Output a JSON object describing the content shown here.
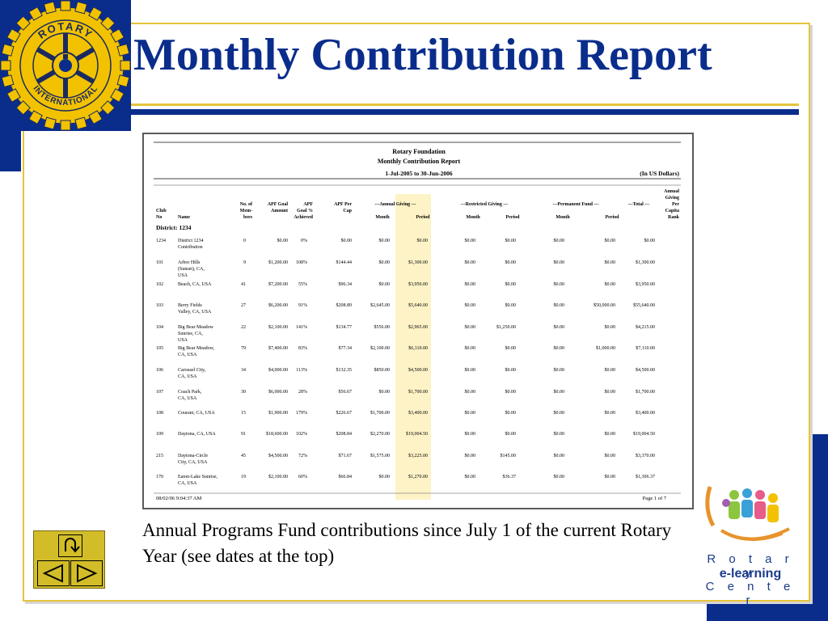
{
  "slide": {
    "title": "Monthly Contribution Report",
    "caption": "Annual Programs Fund contributions since July 1 of the current Rotary Year (see dates at the top)"
  },
  "logo": {
    "top_text": "ROTARY",
    "bottom_text": "INTERNATIONAL"
  },
  "elearning": {
    "line1": "R o t a r y",
    "line2": "e-learning",
    "line3": "C e n t e r"
  },
  "report": {
    "org": "Rotary Foundation",
    "name": "Monthly Contribution Report",
    "period": "1-Jul-2005 to 30-Jun-2006",
    "currency": "(In US Dollars)",
    "district": "District: 1234",
    "footer_left": "08/02/06   9:04:37 AM",
    "footer_right": "Page 1 of 7",
    "headers": {
      "club_no": [
        "Club",
        "No"
      ],
      "name": "Name",
      "members": [
        "No. of",
        "Mem-",
        "bers"
      ],
      "apf_goal": [
        "APF Goal",
        "Amount"
      ],
      "apf_goal_pct": [
        "APF",
        "Goal %",
        "Achieved"
      ],
      "apf_per_cap": [
        "APF Per",
        "Cap"
      ],
      "annual_giving": "---Annual Giving ---",
      "restricted_giving": "---Restricted Giving ---",
      "permanent_fund": "---Permanent Fund ---",
      "total": "---Total ---",
      "month": "Month",
      "period": "Period",
      "rank": [
        "Annual",
        "Giving",
        "Per",
        "Capita",
        "Rank"
      ]
    },
    "rows": [
      {
        "club": "1234",
        "name": [
          "District 1234",
          "Contribution"
        ],
        "members": "0",
        "goal": "$0.00",
        "pct": "0%",
        "percap": "$0.00",
        "ag_m": "$0.00",
        "ag_p": "$0.00",
        "rg_m": "$0.00",
        "rg_p": "$0.00",
        "pf_m": "$0.00",
        "pf_p": "$0.00",
        "total": "$0.00"
      },
      {
        "club": "101",
        "name": [
          "Arbor Hills",
          "(Sunset), CA,",
          "USA"
        ],
        "members": "9",
        "goal": "$1,200.00",
        "pct": "108%",
        "percap": "$144.44",
        "ag_m": "$0.00",
        "ag_p": "$1,300.00",
        "rg_m": "$0.00",
        "rg_p": "$0.00",
        "pf_m": "$0.00",
        "pf_p": "$0.00",
        "total": "$1,300.00"
      },
      {
        "club": "102",
        "name": [
          "Beach, CA, USA"
        ],
        "members": "41",
        "goal": "$7,200.00",
        "pct": "55%",
        "percap": "$96.34",
        "ag_m": "$0.00",
        "ag_p": "$3,950.00",
        "rg_m": "$0.00",
        "rg_p": "$0.00",
        "pf_m": "$0.00",
        "pf_p": "$0.00",
        "total": "$3,950.00"
      },
      {
        "club": "103",
        "name": [
          "Berry Fields",
          "Valley, CA, USA"
        ],
        "members": "27",
        "goal": "$6,200.00",
        "pct": "91%",
        "percap": "$208.89",
        "ag_m": "$2,645.00",
        "ag_p": "$5,640.00",
        "rg_m": "$0.00",
        "rg_p": "$0.00",
        "pf_m": "$0.00",
        "pf_p": "$50,000.00",
        "total": "$55,640.00"
      },
      {
        "club": "104",
        "name": [
          "Big Bear Meadow",
          "Sunrise, CA,",
          "USA"
        ],
        "members": "22",
        "goal": "$2,100.00",
        "pct": "141%",
        "percap": "$134.77",
        "ag_m": "$556.00",
        "ag_p": "$2,965.00",
        "rg_m": "$0.00",
        "rg_p": "$1,250.00",
        "pf_m": "$0.00",
        "pf_p": "$0.00",
        "total": "$4,215.00"
      },
      {
        "club": "105",
        "name": [
          "Big Bear Meadow,",
          "CA, USA"
        ],
        "members": "79",
        "goal": "$7,400.00",
        "pct": "83%",
        "percap": "$77.34",
        "ag_m": "$2,100.00",
        "ag_p": "$6,110.00",
        "rg_m": "$0.00",
        "rg_p": "$0.00",
        "pf_m": "$0.00",
        "pf_p": "$1,000.00",
        "total": "$7,110.00"
      },
      {
        "club": "106",
        "name": [
          "Carousel City,",
          "CA, USA"
        ],
        "members": "34",
        "goal": "$4,000.00",
        "pct": "113%",
        "percap": "$132.35",
        "ag_m": "$850.00",
        "ag_p": "$4,500.00",
        "rg_m": "$0.00",
        "rg_p": "$0.00",
        "pf_m": "$0.00",
        "pf_p": "$0.00",
        "total": "$4,500.00"
      },
      {
        "club": "107",
        "name": [
          "Coach Park,",
          "CA, USA"
        ],
        "members": "30",
        "goal": "$6,000.00",
        "pct": "28%",
        "percap": "$56.67",
        "ag_m": "$0.00",
        "ag_p": "$1,700.00",
        "rg_m": "$0.00",
        "rg_p": "$0.00",
        "pf_m": "$0.00",
        "pf_p": "$0.00",
        "total": "$1,700.00"
      },
      {
        "club": "108",
        "name": [
          "Courant, CA, USA"
        ],
        "members": "15",
        "goal": "$1,900.00",
        "pct": "179%",
        "percap": "$226.67",
        "ag_m": "$1,700.00",
        "ag_p": "$3,400.00",
        "rg_m": "$0.00",
        "rg_p": "$0.00",
        "pf_m": "$0.00",
        "pf_p": "$0.00",
        "total": "$3,400.00"
      },
      {
        "club": "109",
        "name": [
          "Daytona, CA, USA"
        ],
        "members": "91",
        "goal": "$18,600.00",
        "pct": "102%",
        "percap": "$208.84",
        "ag_m": "$2,270.00",
        "ag_p": "$19,004.50",
        "rg_m": "$0.00",
        "rg_p": "$0.00",
        "pf_m": "$0.00",
        "pf_p": "$0.00",
        "total": "$19,004.50"
      },
      {
        "club": "215",
        "name": [
          "Daytona-Circle",
          "City, CA, USA"
        ],
        "members": "45",
        "goal": "$4,500.00",
        "pct": "72%",
        "percap": "$71.67",
        "ag_m": "$1,575.00",
        "ag_p": "$3,225.00",
        "rg_m": "$0.00",
        "rg_p": "$145.00",
        "pf_m": "$0.00",
        "pf_p": "$0.00",
        "total": "$3,370.00"
      },
      {
        "club": "170",
        "name": [
          "Eaton-Lake Sunrise,",
          "CA, USA"
        ],
        "members": "19",
        "goal": "$2,100.00",
        "pct": "60%",
        "percap": "$66.84",
        "ag_m": "$0.00",
        "ag_p": "$1,270.00",
        "rg_m": "$0.00",
        "rg_p": "$36.37",
        "pf_m": "$0.00",
        "pf_p": "$0.00",
        "total": "$1,306.37"
      }
    ]
  },
  "nav": {
    "home_label": "U-turn",
    "prev_label": "previous",
    "next_label": "next"
  },
  "colors": {
    "navy": "#0a2d8c",
    "gold": "#e5c43a",
    "highlight": "#fdf3c6"
  }
}
